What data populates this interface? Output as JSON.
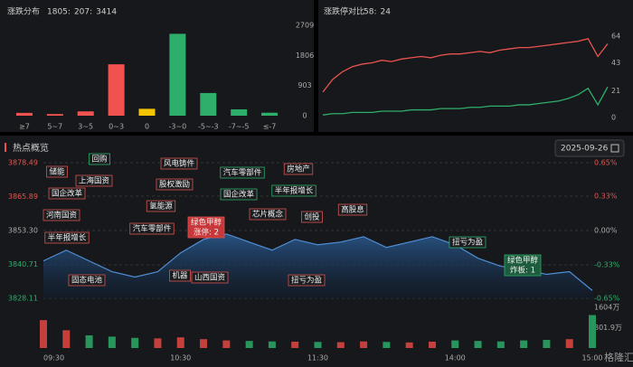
{
  "chart_data": [
    {
      "type": "bar",
      "title": "涨跌分布",
      "summary": [
        "1805:",
        "207:",
        "3414"
      ],
      "summary_colors": [
        "#f0524f",
        "#e8c13a",
        "#2eae6b"
      ],
      "categories": [
        "≥7",
        "5~7",
        "3~5",
        "0~3",
        "0",
        "-3~0",
        "-5~-3",
        "-7~-5",
        "≤-7"
      ],
      "values": [
        85,
        50,
        130,
        1540,
        207,
        2454,
        680,
        190,
        90
      ],
      "colors": [
        "#f0524f",
        "#f0524f",
        "#f0524f",
        "#f0524f",
        "#f5c400",
        "#2eae6b",
        "#2eae6b",
        "#2eae6b",
        "#2eae6b"
      ],
      "ylim": [
        0,
        2709
      ],
      "yticks": [
        0,
        903,
        1806,
        2709
      ]
    },
    {
      "type": "line",
      "title": "涨跌停对比",
      "summary": [
        "58:",
        "24"
      ],
      "summary_colors": [
        "#f0524f",
        "#2eae6b"
      ],
      "ylim": [
        0,
        64
      ],
      "yticks": [
        0,
        21,
        43,
        64
      ],
      "series": [
        {
          "color": "#e8534f",
          "values": [
            20,
            30,
            36,
            40,
            42,
            43,
            45,
            44,
            46,
            47,
            48,
            47,
            49,
            50,
            50,
            51,
            52,
            51,
            53,
            54,
            55,
            55,
            56,
            57,
            58,
            59,
            60,
            62,
            48,
            58
          ]
        },
        {
          "color": "#2eae6b",
          "values": [
            2,
            3,
            3,
            4,
            4,
            4,
            5,
            5,
            5,
            6,
            6,
            6,
            7,
            7,
            7,
            8,
            8,
            9,
            9,
            9,
            10,
            10,
            11,
            12,
            13,
            15,
            18,
            23,
            10,
            24
          ]
        }
      ]
    },
    {
      "type": "area",
      "title": "热点概览",
      "date": "2025-09-26",
      "color": "#4f8fd6",
      "x": [
        "09:30",
        "09:40",
        "09:50",
        "10:00",
        "10:10",
        "10:20",
        "10:30",
        "10:40",
        "10:50",
        "11:00",
        "11:10",
        "11:20",
        "11:30",
        "13:10",
        "13:20",
        "13:30",
        "13:40",
        "13:50",
        "14:00",
        "14:10",
        "14:20",
        "14:30",
        "14:40",
        "14:50",
        "15:00"
      ],
      "values": [
        3842,
        3846,
        3842,
        3838,
        3836,
        3838,
        3845,
        3850,
        3852,
        3849,
        3846,
        3850,
        3848,
        3849,
        3851,
        3847,
        3849,
        3851,
        3848,
        3843,
        3840,
        3839,
        3837,
        3838,
        3831
      ],
      "xticks": [
        "09:30",
        "10:30",
        "11:30",
        "14:00",
        "15:00"
      ],
      "ylim": [
        3828.11,
        3878.49
      ],
      "yticks": [
        3878.49,
        3865.89,
        {
          "value": 3853.3,
          "label": "3853.30"
        },
        3840.71,
        3828.11
      ],
      "y2lim": [
        -0.65,
        0.65
      ],
      "y2ticks": [
        {
          "value": 0.65,
          "label": "0.65%"
        },
        {
          "value": 0.33,
          "label": "0.33%"
        },
        {
          "value": 0,
          "label": "0.00%"
        },
        {
          "value": -0.33,
          "label": "-0.33%"
        },
        {
          "value": -0.65,
          "label": "-0.65%"
        }
      ],
      "volume": {
        "values": [
          1100,
          700,
          500,
          450,
          400,
          380,
          420,
          350,
          300,
          280,
          260,
          250,
          240,
          230,
          260,
          240,
          220,
          250,
          300,
          280,
          260,
          300,
          320,
          350,
          1300
        ],
        "ylim": [
          0,
          1604
        ],
        "yticks": [
          {
            "value": 1604,
            "label": "1604万"
          },
          {
            "value": 801.9,
            "label": "801.9万"
          }
        ]
      },
      "annotations": [
        {
          "text": "储能"
        },
        {
          "text": "回购"
        },
        {
          "text": "国企改革"
        },
        {
          "text": "上海国资"
        },
        {
          "text": "河南国资"
        },
        {
          "text": "半年报增长"
        },
        {
          "text": "风电铸件"
        },
        {
          "text": "股权激励"
        },
        {
          "text": "氢能源"
        },
        {
          "text": "汽车零部件"
        },
        {
          "text": "绿色甲醇",
          "sub": "涨停: 2"
        },
        {
          "text": "汽车零部件"
        },
        {
          "text": "国企改革"
        },
        {
          "text": "房地产"
        },
        {
          "text": "半年报增长"
        },
        {
          "text": "芯片概念"
        },
        {
          "text": "创投"
        },
        {
          "text": "高股息"
        },
        {
          "text": "机器"
        },
        {
          "text": "山西国资"
        },
        {
          "text": "固态电池"
        },
        {
          "text": "扭亏为盈"
        },
        {
          "text": "扭亏为盈"
        },
        {
          "text": "绿色甲醇",
          "sub": "炸板: 1"
        }
      ]
    }
  ],
  "watermark": "格隆汇"
}
